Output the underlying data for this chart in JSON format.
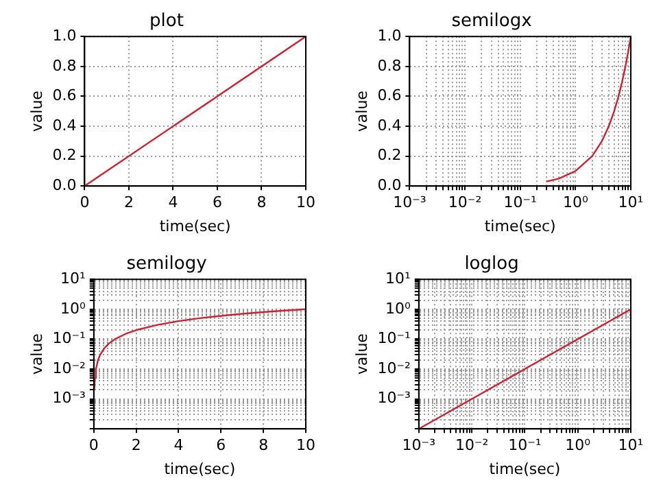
{
  "chart_data": [
    {
      "type": "line",
      "title": "plot",
      "xlabel": "time(sec)",
      "ylabel": "value",
      "grid": true,
      "xlim": [
        0,
        10
      ],
      "ylim": [
        0,
        1
      ],
      "xticks": [
        0,
        2,
        4,
        6,
        8,
        10
      ],
      "yticks": [
        {
          "value": 0,
          "label": "0.0"
        },
        {
          "value": 0.2,
          "label": "0.2"
        },
        {
          "value": 0.4,
          "label": "0.4"
        },
        {
          "value": 0.6,
          "label": "0.6"
        },
        {
          "value": 0.8,
          "label": "0.8"
        },
        {
          "value": 1,
          "label": "1.0"
        }
      ],
      "series": [
        {
          "color": "#cc2233",
          "x": [
            0,
            10
          ],
          "values": [
            0,
            1
          ]
        }
      ]
    },
    {
      "type": "line",
      "title": "semilogx",
      "xlabel": "time(sec)",
      "ylabel": "value",
      "grid": true,
      "log": "x",
      "xlim": [
        0.001,
        10
      ],
      "ylim": [
        0,
        1
      ],
      "xticks": [
        {
          "value": 0.001,
          "label": "10⁻³"
        },
        {
          "value": 0.002,
          "label": null
        },
        {
          "value": 0.003,
          "label": null
        },
        {
          "value": 0.004,
          "label": null
        },
        {
          "value": 0.005,
          "label": null
        },
        {
          "value": 0.006,
          "label": null
        },
        {
          "value": 0.007,
          "label": null
        },
        {
          "value": 0.008,
          "label": null
        },
        {
          "value": 0.009,
          "label": null
        },
        {
          "value": 0.01,
          "label": "10⁻²"
        },
        {
          "value": 0.02,
          "label": null
        },
        {
          "value": 0.03,
          "label": null
        },
        {
          "value": 0.04,
          "label": null
        },
        {
          "value": 0.05,
          "label": null
        },
        {
          "value": 0.06,
          "label": null
        },
        {
          "value": 0.07,
          "label": null
        },
        {
          "value": 0.08,
          "label": null
        },
        {
          "value": 0.09,
          "label": null
        },
        {
          "value": 0.1,
          "label": "10⁻¹"
        },
        {
          "value": 0.2,
          "label": null
        },
        {
          "value": 0.3,
          "label": null
        },
        {
          "value": 0.4,
          "label": null
        },
        {
          "value": 0.5,
          "label": null
        },
        {
          "value": 0.6,
          "label": null
        },
        {
          "value": 0.7,
          "label": null
        },
        {
          "value": 0.8,
          "label": null
        },
        {
          "value": 0.9,
          "label": null
        },
        {
          "value": 1,
          "label": "10⁰"
        },
        {
          "value": 2,
          "label": null
        },
        {
          "value": 3,
          "label": null
        },
        {
          "value": 4,
          "label": null
        },
        {
          "value": 5,
          "label": null
        },
        {
          "value": 6,
          "label": null
        },
        {
          "value": 7,
          "label": null
        },
        {
          "value": 8,
          "label": null
        },
        {
          "value": 9,
          "label": null
        },
        {
          "value": 10,
          "label": "10¹"
        }
      ],
      "yticks": [
        {
          "value": 0,
          "label": "0.0"
        },
        {
          "value": 0.2,
          "label": "0.2"
        },
        {
          "value": 0.4,
          "label": "0.4"
        },
        {
          "value": 0.6,
          "label": "0.6"
        },
        {
          "value": 0.8,
          "label": "0.8"
        },
        {
          "value": 1,
          "label": "1.0"
        }
      ],
      "series": [
        {
          "color": "#cc2233",
          "x": [
            0.3,
            0.5,
            1,
            2,
            3,
            4,
            5,
            6,
            7,
            8,
            9,
            10
          ],
          "values": [
            0.03,
            0.05,
            0.1,
            0.2,
            0.3,
            0.4,
            0.5,
            0.6,
            0.7,
            0.8,
            0.9,
            1
          ]
        }
      ]
    },
    {
      "type": "line",
      "title": "semilogy",
      "xlabel": "time(sec)",
      "ylabel": "value",
      "grid": true,
      "log": "y",
      "xlim": [
        0,
        10
      ],
      "ylim": [
        0.0001,
        10
      ],
      "xticks": [
        0,
        2,
        4,
        6,
        8,
        10
      ],
      "yticks": [
        {
          "value": 0.0001,
          "label": null
        },
        {
          "value": 0.0002,
          "label": null
        },
        {
          "value": 0.0003,
          "label": null
        },
        {
          "value": 0.0004,
          "label": null
        },
        {
          "value": 0.0005,
          "label": null
        },
        {
          "value": 0.0006,
          "label": null
        },
        {
          "value": 0.0007,
          "label": null
        },
        {
          "value": 0.0008,
          "label": null
        },
        {
          "value": 0.0009,
          "label": null
        },
        {
          "value": 0.001,
          "label": "10⁻³"
        },
        {
          "value": 0.002,
          "label": null
        },
        {
          "value": 0.003,
          "label": null
        },
        {
          "value": 0.004,
          "label": null
        },
        {
          "value": 0.005,
          "label": null
        },
        {
          "value": 0.006,
          "label": null
        },
        {
          "value": 0.007,
          "label": null
        },
        {
          "value": 0.008,
          "label": null
        },
        {
          "value": 0.009,
          "label": null
        },
        {
          "value": 0.01,
          "label": "10⁻²"
        },
        {
          "value": 0.02,
          "label": null
        },
        {
          "value": 0.03,
          "label": null
        },
        {
          "value": 0.04,
          "label": null
        },
        {
          "value": 0.05,
          "label": null
        },
        {
          "value": 0.06,
          "label": null
        },
        {
          "value": 0.07,
          "label": null
        },
        {
          "value": 0.08,
          "label": null
        },
        {
          "value": 0.09,
          "label": null
        },
        {
          "value": 0.1,
          "label": "10⁻¹"
        },
        {
          "value": 0.2,
          "label": null
        },
        {
          "value": 0.3,
          "label": null
        },
        {
          "value": 0.4,
          "label": null
        },
        {
          "value": 0.5,
          "label": null
        },
        {
          "value": 0.6,
          "label": null
        },
        {
          "value": 0.7,
          "label": null
        },
        {
          "value": 0.8,
          "label": null
        },
        {
          "value": 0.9,
          "label": null
        },
        {
          "value": 1,
          "label": "10⁰"
        },
        {
          "value": 2,
          "label": null
        },
        {
          "value": 3,
          "label": null
        },
        {
          "value": 4,
          "label": null
        },
        {
          "value": 5,
          "label": null
        },
        {
          "value": 6,
          "label": null
        },
        {
          "value": 7,
          "label": null
        },
        {
          "value": 8,
          "label": null
        },
        {
          "value": 9,
          "label": null
        },
        {
          "value": 10,
          "label": "10¹"
        }
      ],
      "series": [
        {
          "color": "#cc2233",
          "x": [
            0.02,
            0.05,
            0.1,
            0.2,
            0.3,
            0.5,
            0.7,
            1,
            1.5,
            2,
            3,
            4,
            5,
            6,
            7,
            8,
            9,
            10
          ],
          "values": [
            0.002,
            0.005,
            0.01,
            0.02,
            0.03,
            0.05,
            0.07,
            0.1,
            0.15,
            0.2,
            0.3,
            0.4,
            0.5,
            0.6,
            0.7,
            0.8,
            0.9,
            1
          ]
        }
      ]
    },
    {
      "type": "line",
      "title": "loglog",
      "xlabel": "time(sec)",
      "ylabel": "value",
      "grid": true,
      "log": "xy",
      "xlim": [
        0.001,
        10
      ],
      "ylim": [
        0.0001,
        10
      ],
      "xticks": [
        {
          "value": 0.001,
          "label": "10⁻³"
        },
        {
          "value": 0.002,
          "label": null
        },
        {
          "value": 0.003,
          "label": null
        },
        {
          "value": 0.004,
          "label": null
        },
        {
          "value": 0.005,
          "label": null
        },
        {
          "value": 0.006,
          "label": null
        },
        {
          "value": 0.007,
          "label": null
        },
        {
          "value": 0.008,
          "label": null
        },
        {
          "value": 0.009,
          "label": null
        },
        {
          "value": 0.01,
          "label": "10⁻²"
        },
        {
          "value": 0.02,
          "label": null
        },
        {
          "value": 0.03,
          "label": null
        },
        {
          "value": 0.04,
          "label": null
        },
        {
          "value": 0.05,
          "label": null
        },
        {
          "value": 0.06,
          "label": null
        },
        {
          "value": 0.07,
          "label": null
        },
        {
          "value": 0.08,
          "label": null
        },
        {
          "value": 0.09,
          "label": null
        },
        {
          "value": 0.1,
          "label": "10⁻¹"
        },
        {
          "value": 0.2,
          "label": null
        },
        {
          "value": 0.3,
          "label": null
        },
        {
          "value": 0.4,
          "label": null
        },
        {
          "value": 0.5,
          "label": null
        },
        {
          "value": 0.6,
          "label": null
        },
        {
          "value": 0.7,
          "label": null
        },
        {
          "value": 0.8,
          "label": null
        },
        {
          "value": 0.9,
          "label": null
        },
        {
          "value": 1,
          "label": "10⁰"
        },
        {
          "value": 2,
          "label": null
        },
        {
          "value": 3,
          "label": null
        },
        {
          "value": 4,
          "label": null
        },
        {
          "value": 5,
          "label": null
        },
        {
          "value": 6,
          "label": null
        },
        {
          "value": 7,
          "label": null
        },
        {
          "value": 8,
          "label": null
        },
        {
          "value": 9,
          "label": null
        },
        {
          "value": 10,
          "label": "10¹"
        }
      ],
      "yticks": [
        {
          "value": 0.0001,
          "label": null
        },
        {
          "value": 0.0002,
          "label": null
        },
        {
          "value": 0.0003,
          "label": null
        },
        {
          "value": 0.0004,
          "label": null
        },
        {
          "value": 0.0005,
          "label": null
        },
        {
          "value": 0.0006,
          "label": null
        },
        {
          "value": 0.0007,
          "label": null
        },
        {
          "value": 0.0008,
          "label": null
        },
        {
          "value": 0.0009,
          "label": null
        },
        {
          "value": 0.001,
          "label": "10⁻³"
        },
        {
          "value": 0.002,
          "label": null
        },
        {
          "value": 0.003,
          "label": null
        },
        {
          "value": 0.004,
          "label": null
        },
        {
          "value": 0.005,
          "label": null
        },
        {
          "value": 0.006,
          "label": null
        },
        {
          "value": 0.007,
          "label": null
        },
        {
          "value": 0.008,
          "label": null
        },
        {
          "value": 0.009,
          "label": null
        },
        {
          "value": 0.01,
          "label": "10⁻²"
        },
        {
          "value": 0.02,
          "label": null
        },
        {
          "value": 0.03,
          "label": null
        },
        {
          "value": 0.04,
          "label": null
        },
        {
          "value": 0.05,
          "label": null
        },
        {
          "value": 0.06,
          "label": null
        },
        {
          "value": 0.07,
          "label": null
        },
        {
          "value": 0.08,
          "label": null
        },
        {
          "value": 0.09,
          "label": null
        },
        {
          "value": 0.1,
          "label": "10⁻¹"
        },
        {
          "value": 0.2,
          "label": null
        },
        {
          "value": 0.3,
          "label": null
        },
        {
          "value": 0.4,
          "label": null
        },
        {
          "value": 0.5,
          "label": null
        },
        {
          "value": 0.6,
          "label": null
        },
        {
          "value": 0.7,
          "label": null
        },
        {
          "value": 0.8,
          "label": null
        },
        {
          "value": 0.9,
          "label": null
        },
        {
          "value": 1,
          "label": "10⁰"
        },
        {
          "value": 2,
          "label": null
        },
        {
          "value": 3,
          "label": null
        },
        {
          "value": 4,
          "label": null
        },
        {
          "value": 5,
          "label": null
        },
        {
          "value": 6,
          "label": null
        },
        {
          "value": 7,
          "label": null
        },
        {
          "value": 8,
          "label": null
        },
        {
          "value": 9,
          "label": null
        },
        {
          "value": 10,
          "label": "10¹"
        }
      ],
      "series": [
        {
          "color": "#cc2233",
          "x": [
            0.001,
            10
          ],
          "values": [
            0.0001,
            1
          ]
        }
      ]
    }
  ]
}
